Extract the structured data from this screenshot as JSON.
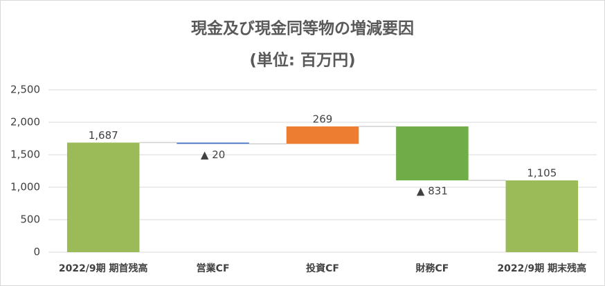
{
  "chart_data": {
    "type": "waterfall",
    "title": "現金及び現金同等物の増減要因",
    "subtitle": "(単位: 百万円)",
    "categories": [
      "2022/9期 期首残高",
      "営業CF",
      "投資CF",
      "財務CF",
      "2022/9期 期末残高"
    ],
    "values": [
      1687,
      -20,
      269,
      -831,
      1105
    ],
    "value_labels": [
      "1,687",
      "▲ 20",
      "269",
      "▲ 831",
      "1,105"
    ],
    "totals": [
      true,
      false,
      false,
      false,
      true
    ],
    "colors": [
      "#9bbb59",
      "#4472c4",
      "#ed7d31",
      "#70ad47",
      "#9bbb59"
    ],
    "ylim": [
      0,
      2500
    ],
    "yticks": [
      0,
      500,
      {
        "value": 1000,
        "label": "1,000"
      },
      {
        "value": 1500,
        "label": "1,500"
      },
      {
        "value": 2000,
        "label": "2,000"
      },
      {
        "value": 2500,
        "label": "2,500"
      }
    ],
    "grid": true
  }
}
